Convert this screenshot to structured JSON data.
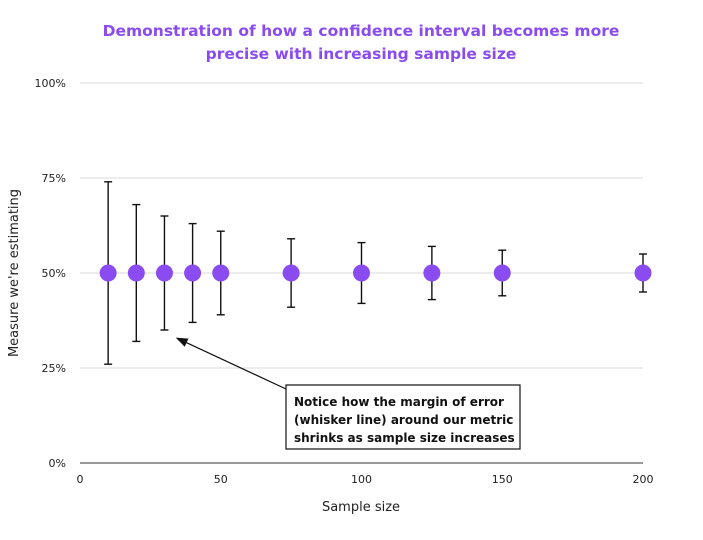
{
  "chart_data": {
    "type": "scatter",
    "title": "Demonstration of how a confidence interval becomes more precise with increasing sample size",
    "title_lines": [
      "Demonstration of how a confidence interval becomes more",
      "precise with increasing sample size"
    ],
    "xlabel": "Sample size",
    "ylabel": "Measure we're estimating",
    "xlim": [
      0,
      200
    ],
    "ylim": [
      0,
      100
    ],
    "x_ticks": [
      0,
      50,
      100,
      150,
      200
    ],
    "x_tick_labels": [
      "0",
      "50",
      "100",
      "150",
      "200"
    ],
    "y_ticks": [
      0,
      25,
      50,
      75,
      100
    ],
    "y_tick_labels": [
      "0%",
      "25%",
      "50%",
      "75%",
      "100%"
    ],
    "grid": "horizontal",
    "legend": "none",
    "points": [
      {
        "x": 10,
        "y": 50,
        "lower": 26,
        "upper": 74
      },
      {
        "x": 20,
        "y": 50,
        "lower": 32,
        "upper": 68
      },
      {
        "x": 30,
        "y": 50,
        "lower": 35,
        "upper": 65
      },
      {
        "x": 40,
        "y": 50,
        "lower": 37,
        "upper": 63
      },
      {
        "x": 50,
        "y": 50,
        "lower": 39,
        "upper": 61
      },
      {
        "x": 75,
        "y": 50,
        "lower": 41,
        "upper": 59
      },
      {
        "x": 100,
        "y": 50,
        "lower": 42,
        "upper": 58
      },
      {
        "x": 125,
        "y": 50,
        "lower": 43,
        "upper": 57
      },
      {
        "x": 150,
        "y": 50,
        "lower": 44,
        "upper": 56
      },
      {
        "x": 200,
        "y": 50,
        "lower": 45,
        "upper": 55
      }
    ],
    "annotation": {
      "lines": [
        "Notice how the margin of error",
        "(whisker line) around our metric",
        "shrinks as sample size increases"
      ],
      "points_to": {
        "x": 34,
        "y": 33
      }
    },
    "colors": {
      "point": "#8a4cf0",
      "title": "#8a4cf0",
      "gridline": "#d9d9d9",
      "whisker": "#111111"
    }
  }
}
